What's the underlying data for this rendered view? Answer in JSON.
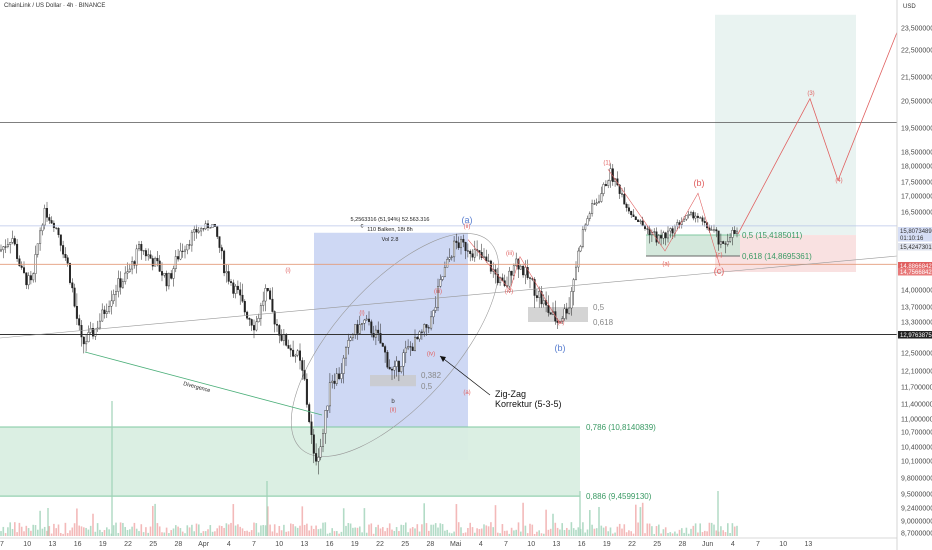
{
  "header": {
    "title": "ChainLink / US Dollar · 4h · BINANCE",
    "currency": "USD"
  },
  "colors": {
    "up": "#1f1f1f",
    "down": "#1f1f1f",
    "fib_green": "#7fc8a0",
    "fib_green_fill": "#d9eee1",
    "blue_box": "#b9c8ef",
    "target_fill": "#e7f2ef",
    "stop_fill": "#f8dede",
    "elliott_red": "#e06060",
    "elliott_blue": "#5a7fd0",
    "divergence": "#4caf7a"
  },
  "chart_data": {
    "type": "candlestick",
    "y_axis": {
      "ticks": [
        "23,5000000",
        "22,5000000",
        "21,5000000",
        "20,5000000",
        "19,5000000",
        "18,5000000",
        "18,0000000",
        "17,5000000",
        "17,0000000",
        "16,5000000",
        "15,5000000",
        "14,5000000",
        "14,0000000",
        "13,7000000",
        "13,3000000",
        "12,5000000",
        "12,1000000",
        "11,7000000",
        "11,4000000",
        "11,0000000",
        "10,7000000",
        "10,4000000",
        "10,1000000",
        "9,8000000",
        "9,5000000",
        "9,2400000",
        "9,0000000",
        "8,7000000"
      ],
      "tick_values": [
        23.5,
        22.5,
        21.5,
        20.5,
        19.5,
        18.5,
        18.0,
        17.5,
        17.0,
        16.5,
        15.5,
        14.5,
        14.0,
        13.7,
        13.3,
        12.5,
        12.1,
        11.7,
        11.4,
        11.0,
        10.7,
        10.4,
        10.1,
        9.8,
        9.5,
        9.24,
        9.0,
        8.7
      ],
      "range": [
        8.55,
        24.3
      ]
    },
    "x_axis": {
      "ticks": [
        "7",
        "10",
        "13",
        "16",
        "19",
        "22",
        "25",
        "28",
        "Apr",
        "4",
        "7",
        "10",
        "13",
        "16",
        "19",
        "22",
        "25",
        "28",
        "Mai",
        "4",
        "7",
        "10",
        "13",
        "16",
        "19",
        "22",
        "25",
        "28",
        "Jun",
        "4",
        "7",
        "10",
        "13"
      ]
    },
    "price_tags": [
      {
        "text": "15,8073489",
        "value": 15.807,
        "type": "sym"
      },
      {
        "text": "01:10:16",
        "value": 15.62,
        "type": "timer"
      },
      {
        "text": "15,4247301",
        "value": 15.425,
        "type": "last"
      },
      {
        "text": "14,8866842",
        "value": 14.887,
        "type": "red"
      },
      {
        "text": "14,7566842",
        "value": 14.757,
        "type": "red2"
      },
      {
        "text": "12,9763875",
        "value": 12.976,
        "type": "dark"
      }
    ],
    "horizontal_lines": [
      19.7,
      15.807,
      14.65,
      12.976
    ],
    "fib_levels": [
      {
        "label": "0,786 (10,8140839)",
        "value": 10.814
      },
      {
        "label": "0,886 (9,4599130)",
        "value": 9.46
      },
      {
        "label": "0,5 (15,4185011)",
        "value": 15.419
      },
      {
        "label": "0,618 (14,8695361)",
        "value": 14.87
      },
      {
        "label": "0,5",
        "value": 13.7
      },
      {
        "label": "0,618",
        "value": 13.3
      },
      {
        "label": "0,382",
        "value": 12.0
      },
      {
        "label": "0,5",
        "value": 11.72
      }
    ],
    "annotations": {
      "measure_line1": "5,2563316 (51,94%) 52.563.316",
      "measure_line2": "110 Balken, 18t 8h",
      "measure_line3": "Vol 2.8",
      "zigzag_line1": "Zig-Zag",
      "zigzag_line2": "Korrektur (5-3-5)",
      "divergence": "Divergence"
    },
    "waves": [
      {
        "label": "(a)",
        "value": 15.95,
        "color": "blue",
        "size": "big"
      },
      {
        "label": "(b)",
        "value": 12.55,
        "color": "blue",
        "size": "big"
      },
      {
        "label": "(1)",
        "value": 18.05,
        "color": "red",
        "size": "small"
      },
      {
        "label": "(b)",
        "value": 17.35,
        "color": "red",
        "size": "big"
      },
      {
        "label": "(a)",
        "value": 14.62,
        "color": "red",
        "size": "small"
      },
      {
        "label": "(c)",
        "value": 14.4,
        "color": "red",
        "size": "big"
      },
      {
        "label": "(c)",
        "value": 14.85,
        "color": "red",
        "size": "small"
      },
      {
        "label": "(3)",
        "value": 20.75,
        "color": "red",
        "size": "small"
      },
      {
        "label": "(4)",
        "value": 17.5,
        "color": "red",
        "size": "small"
      },
      {
        "label": "(i)",
        "value": 14.45,
        "color": "red",
        "size": "small"
      },
      {
        "label": "(ii)",
        "value": 15.7,
        "color": "red",
        "size": "small"
      },
      {
        "label": "(iii)",
        "value": 14.9,
        "color": "red",
        "size": "small"
      },
      {
        "label": "(iv)",
        "value": 13.95,
        "color": "red",
        "size": "small"
      },
      {
        "label": "(v)",
        "value": 13.25,
        "color": "red",
        "size": "small"
      },
      {
        "label": "c",
        "value": 15.72,
        "color": "dark",
        "size": "small"
      },
      {
        "label": "(i)",
        "value": 13.5,
        "color": "red",
        "size": "small"
      },
      {
        "label": "(ii)",
        "value": 11.2,
        "color": "red",
        "size": "small"
      },
      {
        "label": "(iii)",
        "value": 13.95,
        "color": "red",
        "size": "small"
      },
      {
        "label": "(iv)",
        "value": 12.45,
        "color": "red",
        "size": "small"
      },
      {
        "label": "(a)",
        "value": 11.58,
        "color": "red",
        "size": "small"
      },
      {
        "label": "b",
        "value": 11.42,
        "color": "dark",
        "size": "small"
      }
    ]
  }
}
